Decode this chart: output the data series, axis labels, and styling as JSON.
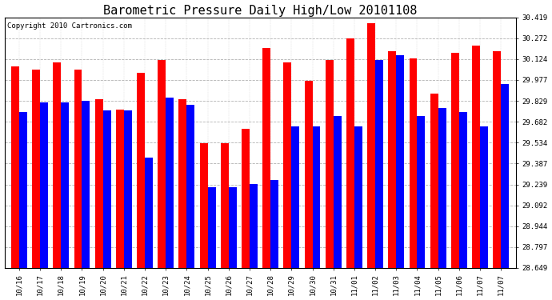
{
  "title": "Barometric Pressure Daily High/Low 20101108",
  "copyright": "Copyright 2010 Cartronics.com",
  "dates": [
    "10/16",
    "10/17",
    "10/18",
    "10/19",
    "10/20",
    "10/21",
    "10/22",
    "10/23",
    "10/24",
    "10/25",
    "10/26",
    "10/27",
    "10/28",
    "10/29",
    "10/30",
    "10/31",
    "11/01",
    "11/02",
    "11/03",
    "11/04",
    "11/05",
    "11/06",
    "11/07",
    "11/07"
  ],
  "highs": [
    30.07,
    30.05,
    30.1,
    30.05,
    29.84,
    29.77,
    30.03,
    30.12,
    29.84,
    29.53,
    29.53,
    29.63,
    30.2,
    30.1,
    29.97,
    30.12,
    30.27,
    30.38,
    30.18,
    30.13,
    29.88,
    30.17,
    30.22,
    30.18
  ],
  "lows": [
    29.75,
    29.82,
    29.82,
    29.83,
    29.76,
    29.76,
    29.43,
    29.85,
    29.8,
    29.22,
    29.22,
    29.24,
    29.27,
    29.65,
    29.65,
    29.72,
    29.65,
    30.12,
    30.15,
    29.72,
    29.78,
    29.75,
    29.65,
    29.95
  ],
  "ymin": 28.649,
  "ymax": 30.419,
  "yticks": [
    28.649,
    28.797,
    28.944,
    29.092,
    29.239,
    29.387,
    29.534,
    29.682,
    29.829,
    29.977,
    30.124,
    30.272,
    30.419
  ],
  "high_color": "#ff0000",
  "low_color": "#0000ff",
  "bg_color": "#ffffff",
  "grid_color": "#aaaaaa",
  "title_fontsize": 11,
  "tick_fontsize": 6.5,
  "copyright_fontsize": 6.5
}
